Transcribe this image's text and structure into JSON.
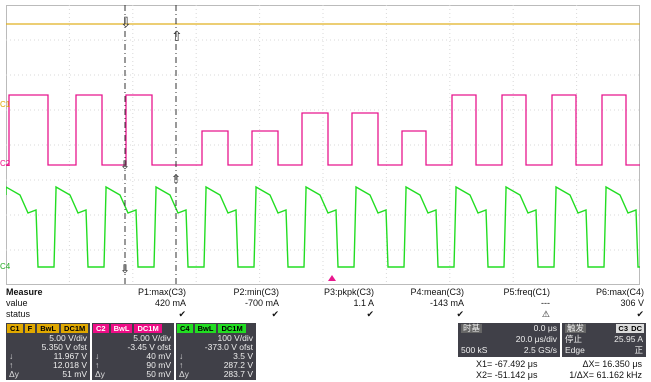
{
  "colors": {
    "c1": "#e0a800",
    "c3": "#ee0d86",
    "c4": "#22dd22",
    "trace_c2": "#e63aa0",
    "panel": "#404048",
    "grid": "#c8c8c8"
  },
  "channel_markers": {
    "c1": "C1",
    "c2": "C2",
    "c4": "C4"
  },
  "measure": {
    "title": "Measure",
    "row_labels": {
      "value": "value",
      "status": "status"
    },
    "params": [
      {
        "name": "P1:max(C3)",
        "value": "420 mA",
        "status": "✔"
      },
      {
        "name": "P2:min(C3)",
        "value": "-700 mA",
        "status": "✔"
      },
      {
        "name": "P3:pkpk(C3)",
        "value": "1.1 A",
        "status": "✔"
      },
      {
        "name": "P4:mean(C3)",
        "value": "-143 mA",
        "status": "✔"
      },
      {
        "name": "P5:freq(C1)",
        "value": "---",
        "status": "⚠"
      },
      {
        "name": "P6:max(C4)",
        "value": "306 V",
        "status": "✔"
      }
    ]
  },
  "channels": [
    {
      "id": "C1",
      "tags": [
        "F",
        "BwL",
        "DC1M"
      ],
      "vdiv": "5.00 V/div",
      "offset": "5.350 V ofst",
      "rows": [
        {
          "sym": "↓",
          "val": "11.967 V"
        },
        {
          "sym": "↑",
          "val": "12.018 V"
        },
        {
          "sym": "Δy",
          "val": "51 mV"
        }
      ]
    },
    {
      "id": "C2",
      "tags": [
        "BwL",
        "DC1M"
      ],
      "vdiv": "5.00 V/div",
      "offset": "-3.45 V ofst",
      "rows": [
        {
          "sym": "↓",
          "val": "40 mV"
        },
        {
          "sym": "↑",
          "val": "90 mV"
        },
        {
          "sym": "Δy",
          "val": "50 mV"
        }
      ]
    },
    {
      "id": "C4",
      "tags": [
        "BwL",
        "DC1M"
      ],
      "vdiv": "100 V/div",
      "offset": "-373.0 V ofst",
      "rows": [
        {
          "sym": "↓",
          "val": "3.5 V"
        },
        {
          "sym": "↑",
          "val": "287.2 V"
        },
        {
          "sym": "Δy",
          "val": "283.7 V"
        }
      ]
    }
  ],
  "timebase": {
    "label": "时基",
    "delay": "0.0 μs",
    "tdiv": "20.0 μs/div",
    "samples": "500 kS",
    "rate": "2.5 GS/s"
  },
  "trigger": {
    "label": "触发",
    "chan": "C3",
    "coupling": "DC",
    "mode": "停止",
    "level": "25.95 A",
    "type": "Edge",
    "slope": "正"
  },
  "cursors": {
    "x1": "X1= -67.492 μs",
    "dx": "ΔX= 16.350 μs",
    "x2": "X2= -51.142 μs",
    "inv_dx": "1/ΔX= 61.162 kHz"
  }
}
